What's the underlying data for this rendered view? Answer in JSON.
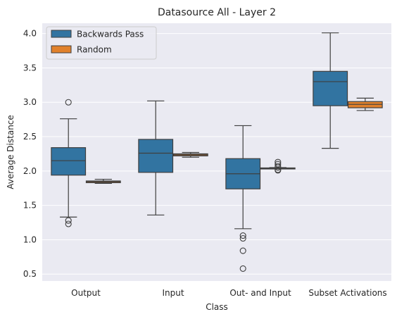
{
  "chart_data": {
    "type": "box",
    "title": "Datasource All - Layer 2",
    "xlabel": "Class",
    "ylabel": "Average Distance",
    "categories": [
      "Output",
      "Input",
      "Out- and Input",
      "Subset Activations"
    ],
    "ylim": [
      0.4,
      4.15
    ],
    "yticks": [
      0.5,
      1.0,
      1.5,
      2.0,
      2.5,
      3.0,
      3.5,
      4.0
    ],
    "ytick_labels": [
      "0.5",
      "1.0",
      "1.5",
      "2.0",
      "2.5",
      "3.0",
      "3.5",
      "4.0"
    ],
    "grid": true,
    "legend_position": "top-left",
    "series": [
      {
        "name": "Backwards Pass",
        "color": "#3274a1",
        "boxes": [
          {
            "whislo": 1.33,
            "q1": 1.94,
            "med": 2.15,
            "q3": 2.34,
            "whishi": 2.76,
            "fliers": [
              3.0,
              1.28,
              1.23
            ]
          },
          {
            "whislo": 1.36,
            "q1": 1.98,
            "med": 2.26,
            "q3": 2.46,
            "whishi": 3.02,
            "fliers": []
          },
          {
            "whislo": 1.16,
            "q1": 1.74,
            "med": 1.96,
            "q3": 2.18,
            "whishi": 2.66,
            "fliers": [
              1.06,
              1.02,
              0.84,
              0.58
            ]
          },
          {
            "whislo": 2.33,
            "q1": 2.95,
            "med": 3.3,
            "q3": 3.45,
            "whishi": 4.01,
            "fliers": []
          }
        ]
      },
      {
        "name": "Random",
        "color": "#e1812c",
        "boxes": [
          {
            "whislo": 1.82,
            "q1": 1.83,
            "med": 1.845,
            "q3": 1.855,
            "whishi": 1.88,
            "fliers": []
          },
          {
            "whislo": 2.2,
            "q1": 2.22,
            "med": 2.235,
            "q3": 2.25,
            "whishi": 2.27,
            "fliers": []
          },
          {
            "whislo": 2.03,
            "q1": 2.035,
            "med": 2.04,
            "q3": 2.045,
            "whishi": 2.05,
            "fliers": [
              2.13,
              2.1,
              2.07,
              2.05,
              2.02,
              2.01
            ]
          },
          {
            "whislo": 2.88,
            "q1": 2.92,
            "med": 2.97,
            "q3": 3.01,
            "whishi": 3.06,
            "fliers": []
          }
        ]
      }
    ]
  }
}
